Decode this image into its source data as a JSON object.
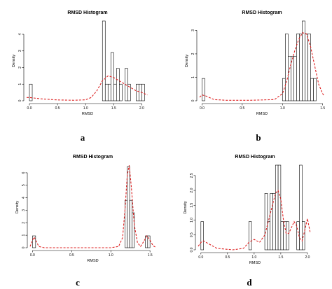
{
  "chart_data": [
    {
      "type": "bar",
      "panel_label": "a",
      "title": "RMSD Histogram",
      "xlabel": "RMSD",
      "ylabel": "Density",
      "xlim": [
        -0.05,
        2.12
      ],
      "ylim": [
        0,
        4.8
      ],
      "xticks": [
        0.0,
        0.5,
        1.0,
        1.5,
        2.0
      ],
      "yticks": [
        0,
        1,
        2,
        3,
        4
      ],
      "bars": [
        {
          "x0": 0.0,
          "x1": 0.05,
          "value": 1.0
        },
        {
          "x0": 1.3,
          "x1": 1.35,
          "value": 4.8
        },
        {
          "x0": 1.35,
          "x1": 1.4,
          "value": 1.0
        },
        {
          "x0": 1.4,
          "x1": 1.45,
          "value": 1.0
        },
        {
          "x0": 1.45,
          "x1": 1.5,
          "value": 2.9
        },
        {
          "x0": 1.5,
          "x1": 1.55,
          "value": 1.0
        },
        {
          "x0": 1.55,
          "x1": 1.6,
          "value": 1.95
        },
        {
          "x0": 1.6,
          "x1": 1.65,
          "value": 1.0
        },
        {
          "x0": 1.7,
          "x1": 1.75,
          "value": 1.95
        },
        {
          "x0": 1.75,
          "x1": 1.8,
          "value": 1.0
        },
        {
          "x0": 1.9,
          "x1": 1.95,
          "value": 1.0
        },
        {
          "x0": 1.95,
          "x1": 2.0,
          "value": 1.0
        },
        {
          "x0": 2.0,
          "x1": 2.05,
          "value": 1.0
        }
      ],
      "density": {
        "x": [
          -0.05,
          0.0,
          0.2,
          0.5,
          0.8,
          1.0,
          1.1,
          1.2,
          1.3,
          1.4,
          1.5,
          1.6,
          1.7,
          1.8,
          1.9,
          2.0,
          2.1
        ],
        "y": [
          0.2,
          0.2,
          0.12,
          0.05,
          0.03,
          0.06,
          0.2,
          0.6,
          1.2,
          1.5,
          1.4,
          1.2,
          1.0,
          0.8,
          0.6,
          0.5,
          0.35
        ]
      }
    },
    {
      "type": "bar",
      "panel_label": "b",
      "title": "RMSD Histogram",
      "xlabel": "RMSD",
      "ylabel": "Density",
      "xlim": [
        -0.03,
        1.52
      ],
      "ylim": [
        0,
        3.4
      ],
      "xticks": [
        0.0,
        0.5,
        1.0,
        1.5
      ],
      "yticks": [
        0,
        1,
        2,
        3
      ],
      "bars": [
        {
          "x0": 0.0,
          "x1": 0.035,
          "value": 0.95
        },
        {
          "x0": 1.0,
          "x1": 1.035,
          "value": 0.95
        },
        {
          "x0": 1.035,
          "x1": 1.07,
          "value": 2.85
        },
        {
          "x0": 1.07,
          "x1": 1.105,
          "value": 1.9
        },
        {
          "x0": 1.105,
          "x1": 1.14,
          "value": 1.9
        },
        {
          "x0": 1.14,
          "x1": 1.175,
          "value": 1.9
        },
        {
          "x0": 1.175,
          "x1": 1.21,
          "value": 2.85
        },
        {
          "x0": 1.21,
          "x1": 1.245,
          "value": 2.85
        },
        {
          "x0": 1.245,
          "x1": 1.28,
          "value": 3.4
        },
        {
          "x0": 1.28,
          "x1": 1.315,
          "value": 2.85
        },
        {
          "x0": 1.315,
          "x1": 1.35,
          "value": 2.85
        },
        {
          "x0": 1.35,
          "x1": 1.385,
          "value": 0.95
        },
        {
          "x0": 1.385,
          "x1": 1.42,
          "value": 0.95
        }
      ],
      "density": {
        "x": [
          -0.03,
          0.0,
          0.05,
          0.15,
          0.3,
          0.6,
          0.9,
          1.0,
          1.05,
          1.1,
          1.15,
          1.2,
          1.25,
          1.3,
          1.35,
          1.4,
          1.45,
          1.5,
          1.52
        ],
        "y": [
          0.15,
          0.25,
          0.2,
          0.05,
          0.02,
          0.02,
          0.05,
          0.3,
          0.8,
          1.5,
          2.1,
          2.6,
          2.9,
          2.85,
          2.3,
          1.5,
          0.7,
          0.3,
          0.2
        ]
      }
    },
    {
      "type": "bar",
      "panel_label": "c",
      "title": "RMSD Histogram",
      "xlabel": "RMSD",
      "ylabel": "Density",
      "xlim": [
        -0.03,
        1.57
      ],
      "ylim": [
        0,
        6.5
      ],
      "xticks": [
        0.0,
        0.5,
        1.0,
        1.5
      ],
      "yticks": [
        0,
        1,
        2,
        3,
        4,
        5,
        6
      ],
      "bars": [
        {
          "x0": 0.0,
          "x1": 0.04,
          "value": 0.95
        },
        {
          "x0": 1.18,
          "x1": 1.21,
          "value": 3.8
        },
        {
          "x0": 1.21,
          "x1": 1.24,
          "value": 6.5
        },
        {
          "x0": 1.24,
          "x1": 1.27,
          "value": 3.8
        },
        {
          "x0": 1.27,
          "x1": 1.3,
          "value": 2.8
        },
        {
          "x0": 1.44,
          "x1": 1.47,
          "value": 0.95
        },
        {
          "x0": 1.47,
          "x1": 1.5,
          "value": 0.95
        }
      ],
      "density": {
        "x": [
          -0.03,
          0.0,
          0.02,
          0.05,
          0.08,
          0.15,
          0.5,
          1.0,
          1.1,
          1.15,
          1.18,
          1.21,
          1.235,
          1.26,
          1.3,
          1.34,
          1.38,
          1.42,
          1.46,
          1.5,
          1.54,
          1.57
        ],
        "y": [
          0.1,
          0.6,
          0.85,
          0.5,
          0.1,
          0.0,
          0.0,
          0.0,
          0.1,
          0.8,
          3.0,
          5.8,
          6.6,
          5.0,
          1.8,
          0.4,
          0.1,
          0.5,
          0.95,
          0.6,
          0.15,
          0.05
        ]
      }
    },
    {
      "type": "bar",
      "panel_label": "d",
      "title": "RMSD Histogram",
      "xlabel": "RMSD",
      "ylabel": "Density",
      "xlim": [
        -0.05,
        2.08
      ],
      "ylim": [
        0,
        2.85
      ],
      "xticks": [
        0.0,
        0.5,
        1.0,
        1.5,
        2.0
      ],
      "yticks": [
        0.0,
        0.5,
        1.0,
        1.5,
        2.0,
        2.5
      ],
      "bars": [
        {
          "x0": 0.0,
          "x1": 0.05,
          "value": 0.95
        },
        {
          "x0": 0.9,
          "x1": 0.95,
          "value": 0.95
        },
        {
          "x0": 1.2,
          "x1": 1.25,
          "value": 1.9
        },
        {
          "x0": 1.25,
          "x1": 1.3,
          "value": 0.95
        },
        {
          "x0": 1.3,
          "x1": 1.35,
          "value": 1.9
        },
        {
          "x0": 1.35,
          "x1": 1.4,
          "value": 1.9
        },
        {
          "x0": 1.4,
          "x1": 1.45,
          "value": 2.85
        },
        {
          "x0": 1.45,
          "x1": 1.5,
          "value": 2.85
        },
        {
          "x0": 1.5,
          "x1": 1.55,
          "value": 0.95
        },
        {
          "x0": 1.55,
          "x1": 1.6,
          "value": 0.95
        },
        {
          "x0": 1.6,
          "x1": 1.65,
          "value": 0.95
        },
        {
          "x0": 1.8,
          "x1": 1.85,
          "value": 0.95
        },
        {
          "x0": 1.85,
          "x1": 1.9,
          "value": 2.85
        },
        {
          "x0": 1.9,
          "x1": 1.95,
          "value": 0.95
        }
      ],
      "density": {
        "x": [
          -0.05,
          0.0,
          0.05,
          0.15,
          0.3,
          0.6,
          0.8,
          0.9,
          1.0,
          1.1,
          1.2,
          1.3,
          1.4,
          1.45,
          1.5,
          1.55,
          1.6,
          1.65,
          1.7,
          1.75,
          1.8,
          1.85,
          1.9,
          1.95,
          2.0,
          2.05
        ],
        "y": [
          0.12,
          0.25,
          0.3,
          0.2,
          0.05,
          0.0,
          0.05,
          0.25,
          0.35,
          0.25,
          0.5,
          1.2,
          1.9,
          2.0,
          1.7,
          1.0,
          0.55,
          0.55,
          0.75,
          0.95,
          0.8,
          0.4,
          0.3,
          0.65,
          1.05,
          0.6
        ]
      }
    }
  ],
  "colors": {
    "bar_stroke": "#000000",
    "bar_fill": "#ffffff",
    "density_line": "#dd2222",
    "axis": "#000000"
  }
}
